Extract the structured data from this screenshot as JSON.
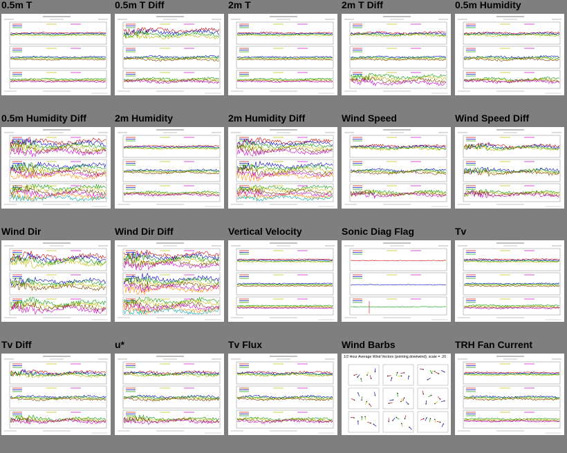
{
  "tiles": [
    {
      "label": "0.5m T",
      "kind": "ts",
      "traces": 4,
      "noisy": [
        0.1,
        0.1,
        0.15
      ]
    },
    {
      "label": "0.5m T Diff",
      "kind": "ts",
      "traces": 4,
      "noisy": [
        0.6,
        0.3,
        0.4
      ]
    },
    {
      "label": "2m T",
      "kind": "ts",
      "traces": 4,
      "noisy": [
        0.1,
        0.1,
        0.15
      ]
    },
    {
      "label": "2m T Diff",
      "kind": "ts",
      "traces": 4,
      "noisy": [
        0.3,
        0.2,
        0.6
      ]
    },
    {
      "label": "0.5m Humidity",
      "kind": "ts",
      "traces": 4,
      "noisy": [
        0.2,
        0.3,
        0.4
      ]
    },
    {
      "label": "0.5m Humidity Diff",
      "kind": "ts",
      "traces": 6,
      "noisy": [
        0.8,
        0.8,
        0.8
      ]
    },
    {
      "label": "2m Humidity",
      "kind": "ts",
      "traces": 4,
      "noisy": [
        0.15,
        0.25,
        0.3
      ]
    },
    {
      "label": "2m Humidity Diff",
      "kind": "ts",
      "traces": 6,
      "noisy": [
        0.6,
        0.7,
        0.6
      ]
    },
    {
      "label": "Wind Speed",
      "kind": "ts",
      "traces": 4,
      "noisy": [
        0.4,
        0.4,
        0.5
      ]
    },
    {
      "label": "Wind Speed Diff",
      "kind": "ts",
      "traces": 4,
      "noisy": [
        0.5,
        0.5,
        0.5
      ]
    },
    {
      "label": "Wind Dir",
      "kind": "ts",
      "traces": 4,
      "noisy": [
        0.9,
        0.7,
        0.9
      ]
    },
    {
      "label": "Wind Dir Diff",
      "kind": "ts",
      "traces": 6,
      "noisy": [
        0.8,
        0.8,
        0.8
      ]
    },
    {
      "label": "Vertical Velocity",
      "kind": "ts",
      "traces": 4,
      "noisy": [
        0.05,
        0.05,
        0.05
      ]
    },
    {
      "label": "Sonic Diag Flag",
      "kind": "flag",
      "traces": 4,
      "noisy": [
        0.0,
        0.0,
        0.0
      ]
    },
    {
      "label": "Tv",
      "kind": "ts",
      "traces": 4,
      "noisy": [
        0.1,
        0.1,
        0.15
      ]
    },
    {
      "label": "Tv Diff",
      "kind": "ts",
      "traces": 4,
      "noisy": [
        0.5,
        0.3,
        0.5
      ]
    },
    {
      "label": "u*",
      "kind": "ts",
      "traces": 4,
      "noisy": [
        0.4,
        0.4,
        0.5
      ]
    },
    {
      "label": "Tv Flux",
      "kind": "ts",
      "traces": 4,
      "noisy": [
        0.3,
        0.3,
        0.4
      ]
    },
    {
      "label": "Wind Barbs",
      "kind": "barbs",
      "traces": 0,
      "noisy": [
        0,
        0,
        0
      ],
      "subtitle": "1/2 Hour Average Wind Vectors (pointing downwind), scale = .20"
    },
    {
      "label": "TRH Fan Current",
      "kind": "ts",
      "traces": 4,
      "noisy": [
        0.1,
        0.2,
        0.15
      ]
    }
  ],
  "colors": {
    "page_bg": "#7f7f7f",
    "series": [
      "#cc0000",
      "#0000cc",
      "#009900",
      "#bbbb00",
      "#7a3d00",
      "#cc00cc",
      "#ff8800",
      "#00aaaa",
      "#444444"
    ]
  }
}
